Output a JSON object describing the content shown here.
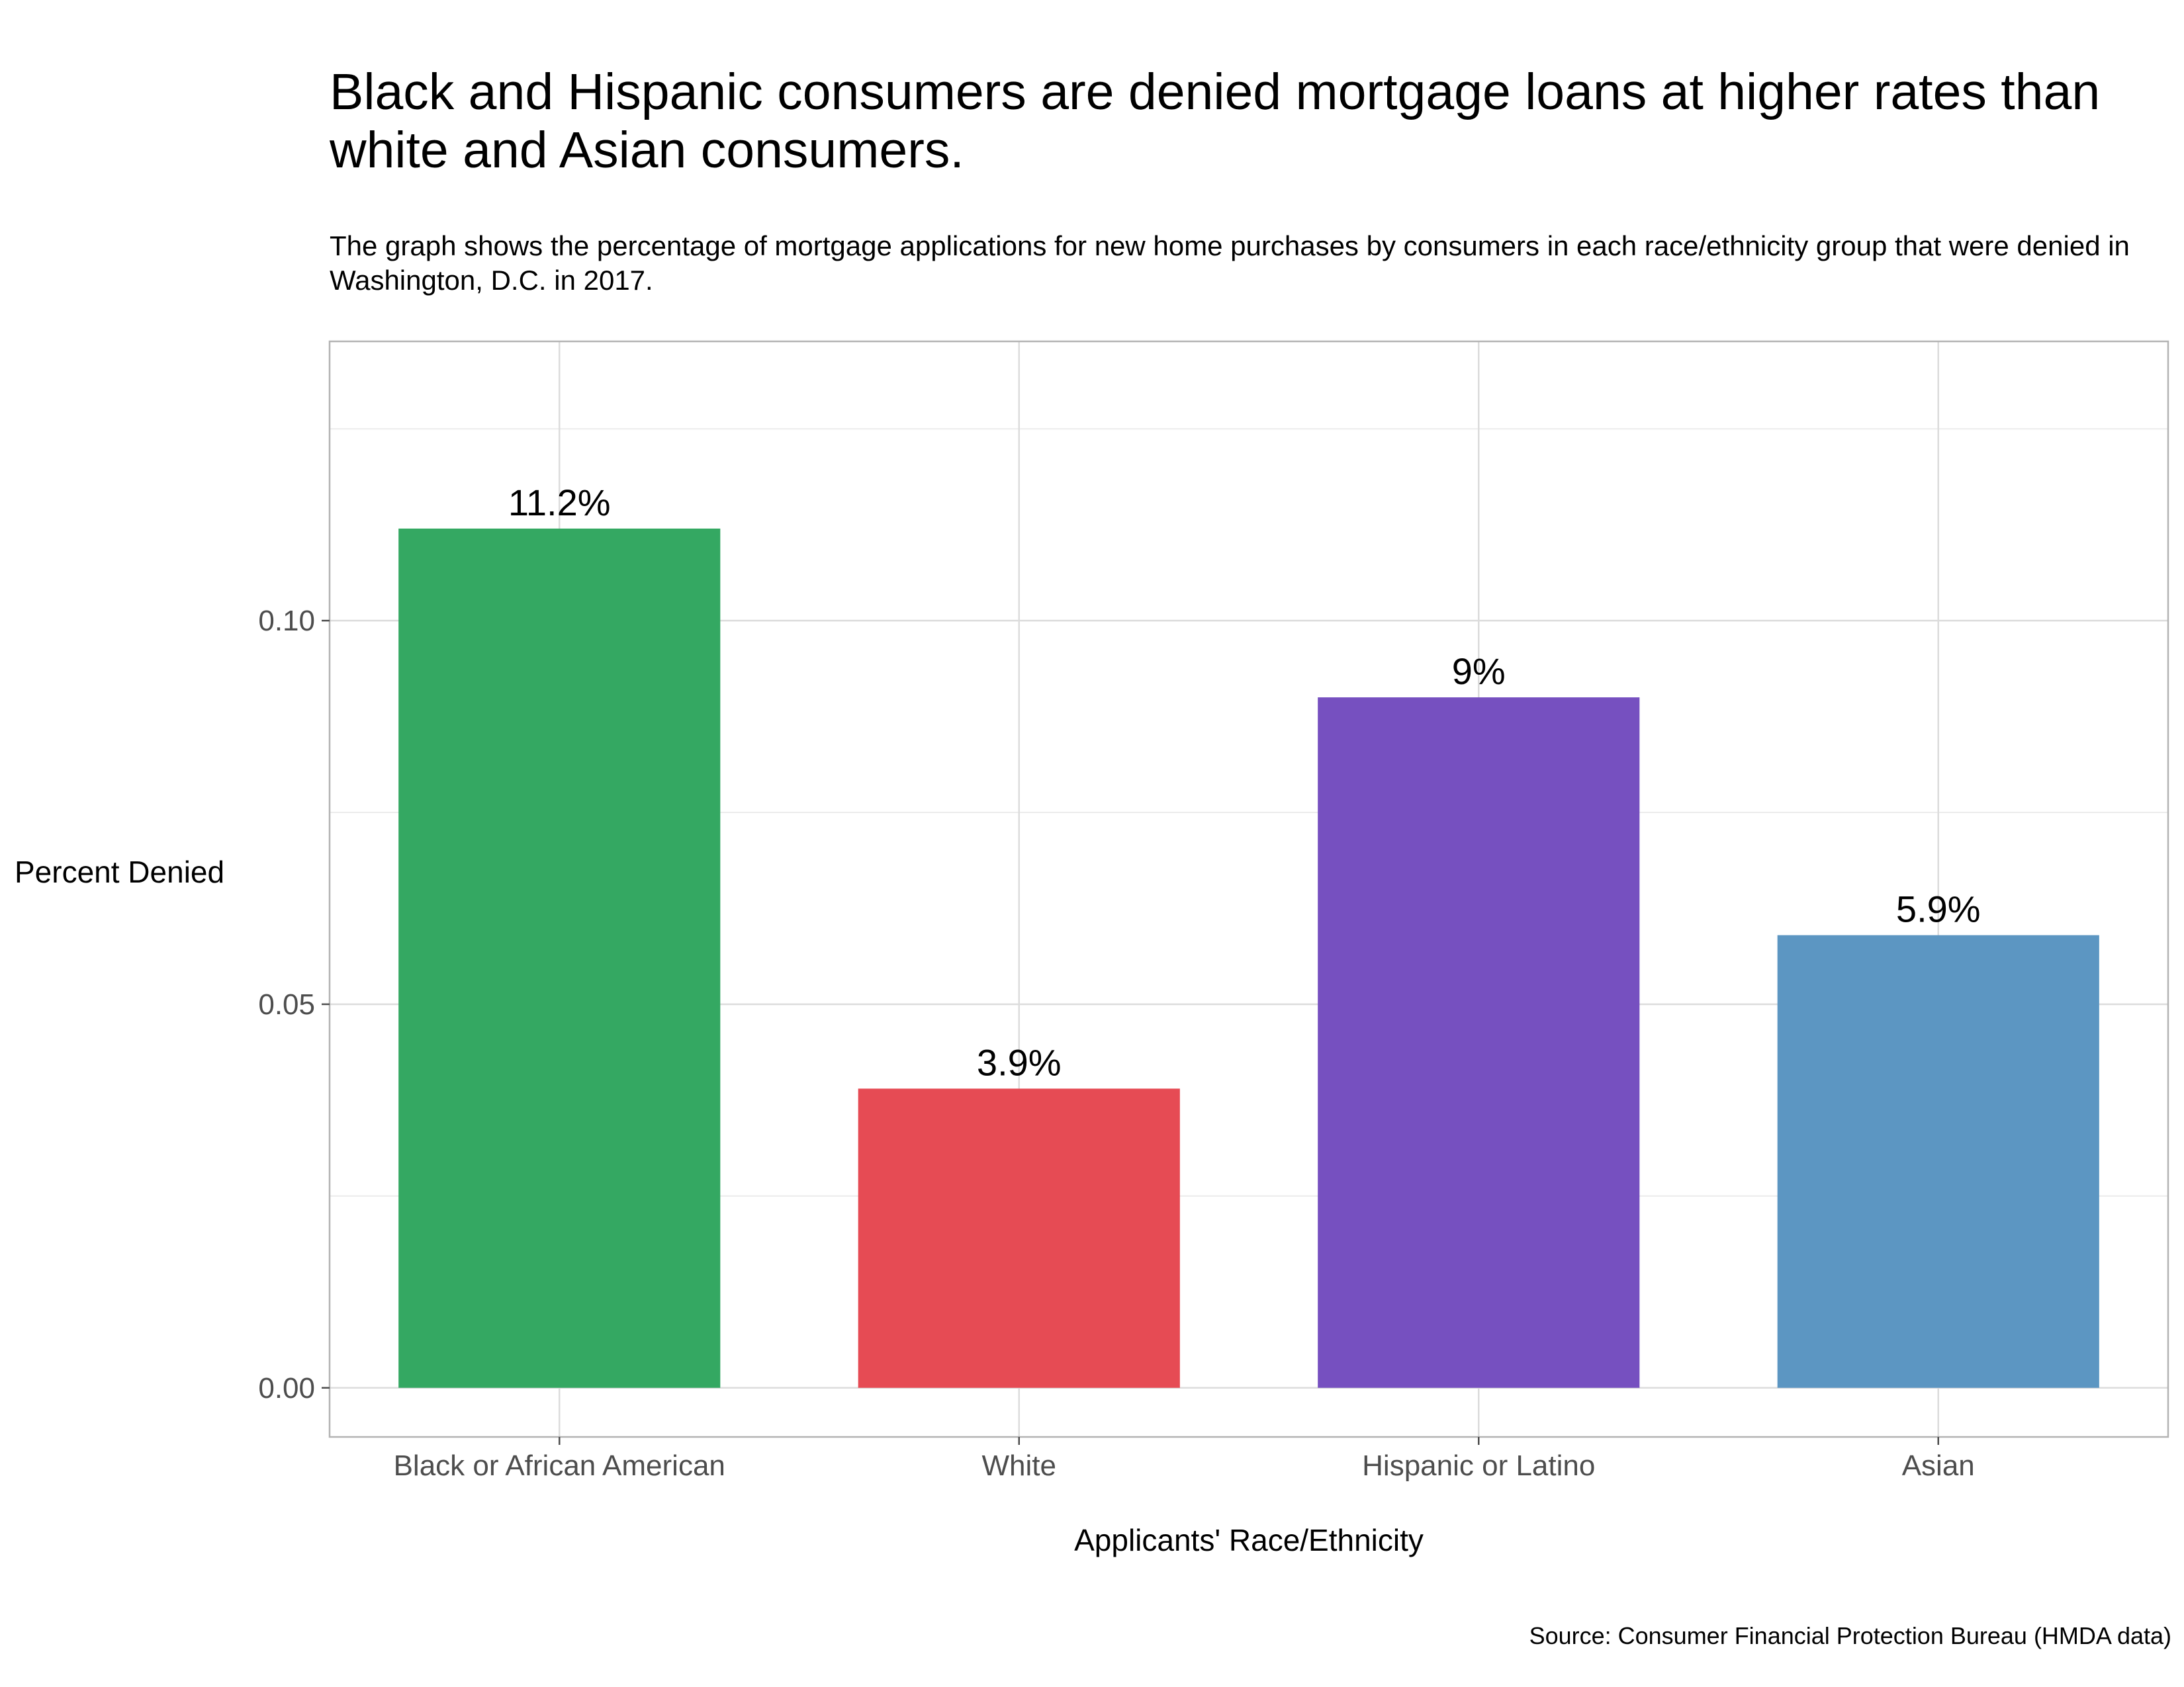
{
  "chart_data": {
    "type": "bar",
    "title": "Black and Hispanic consumers are denied mortgage loans at higher rates than white and Asian consumers.",
    "subtitle": "The graph shows the percentage of mortgage applications for new home purchases by consumers in each race/ethnicity group that were denied in Washington, D.C. in 2017.",
    "xlabel": "Applicants' Race/Ethnicity",
    "ylabel": "Percent Denied",
    "categories": [
      "Black or African American",
      "White",
      "Hispanic or Latino",
      "Asian"
    ],
    "values": [
      0.112,
      0.039,
      0.09,
      0.059
    ],
    "data_labels": [
      "11.2%",
      "3.9%",
      "9%",
      "5.9%"
    ],
    "colors": [
      "#34a862",
      "#e64b54",
      "#7650c0",
      "#5c96c2"
    ],
    "yticks": [
      0.0,
      0.05,
      0.1
    ],
    "ytick_labels": [
      "0.00",
      "0.05",
      "0.10"
    ],
    "ylim": [
      -0.0064,
      0.1364
    ],
    "grid": true,
    "legend": "none",
    "caption": "Source: Consumer Financial Protection Bureau (HMDA data)"
  }
}
